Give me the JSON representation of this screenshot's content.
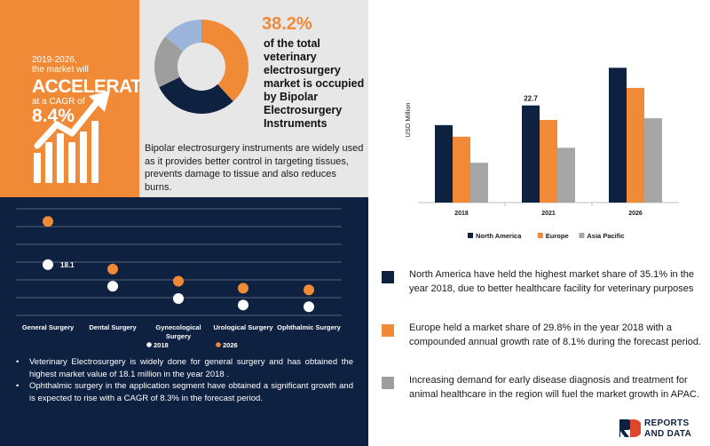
{
  "cagr": {
    "line1": "2019-2026,",
    "line2": "the market will",
    "headline": "ACCELERATE",
    "line3": "at a CAGR of",
    "rate": "8.4%",
    "icon": "growth-arrow-icon"
  },
  "donut": {
    "percent": "38.2%",
    "text": "of the total veterinary electrosurgery market is occupied by Bipolar Electrosurgery Instruments",
    "description": "Bipolar electrosurgery instruments are widely used as it provides better control in targeting tissues, prevents damage to tissue and also reduces burns."
  },
  "key_points": [
    {
      "color": "#0f2140",
      "text": "North America have held the highest market share of 35.1% in the year 2018, due to better healthcare facility for veterinary purposes"
    },
    {
      "color": "#f08a36",
      "text": "Europe held a market share of 29.8% in the year 2018 with a compounded annual growth rate of 8.1% during the forecast period."
    },
    {
      "color": "#9e9e9e",
      "text": "Increasing demand for  early disease diagnosis and  treatment for animal healthcare in the region will fuel the market growth in APAC."
    }
  ],
  "app_notes": [
    "Veterinary Electrosurgery is widely done for general surgery and has obtained the highest market value of 18.1 million in the year 2018 .",
    "Ophthalmic surgery in the application segment have obtained a significant growth and is expected to rise with a CAGR of 8.3% in the forecast period."
  ],
  "logo": {
    "line1": "REPORTS",
    "line2": "AND DATA"
  },
  "chart_data": [
    {
      "type": "pie",
      "categories": [
        "Bipolar Electrosurgery Instruments",
        "",
        "",
        ""
      ],
      "values": [
        38.2,
        29.6,
        18.2,
        14.0
      ],
      "colors": [
        "#f08a36",
        "#0f2140",
        "#9e9e9e",
        "#9bb4d9"
      ],
      "donut": true
    },
    {
      "type": "bar",
      "categories": [
        "2018",
        "2021",
        "2026"
      ],
      "ylabel": "USD Million",
      "ylim": [
        0,
        38
      ],
      "series": [
        {
          "name": "North America",
          "color": "#0f2140",
          "values": [
            18.1,
            22.7,
            31.5
          ]
        },
        {
          "name": "Europe",
          "color": "#f08a36",
          "values": [
            15.4,
            19.3,
            26.8
          ]
        },
        {
          "name": "Asia Pacific",
          "color": "#a6a6a6",
          "values": [
            9.3,
            12.8,
            19.7
          ]
        }
      ],
      "data_labels": [
        {
          "series": 0,
          "category": 1,
          "text": "22.7"
        }
      ],
      "legend": "bottom",
      "grid": false
    },
    {
      "type": "scatter",
      "categories": [
        "General Surgery",
        "Dental Surgery",
        "Gynecological Surgery",
        "Urological Surgery",
        "Ophthalmic Surgery"
      ],
      "series": [
        {
          "name": "2018",
          "color": "#ffffff",
          "values": [
            18.1,
            10.4,
            6.0,
            3.7,
            3.1
          ]
        },
        {
          "name": "2026",
          "color": "#f08a36",
          "values": [
            33.5,
            16.5,
            12.2,
            9.7,
            9.1
          ]
        }
      ],
      "data_labels": [
        {
          "series": 0,
          "category": 0,
          "text": "18.1"
        }
      ],
      "ylim": [
        0,
        38
      ],
      "legend": "bottom",
      "grid": true
    }
  ]
}
